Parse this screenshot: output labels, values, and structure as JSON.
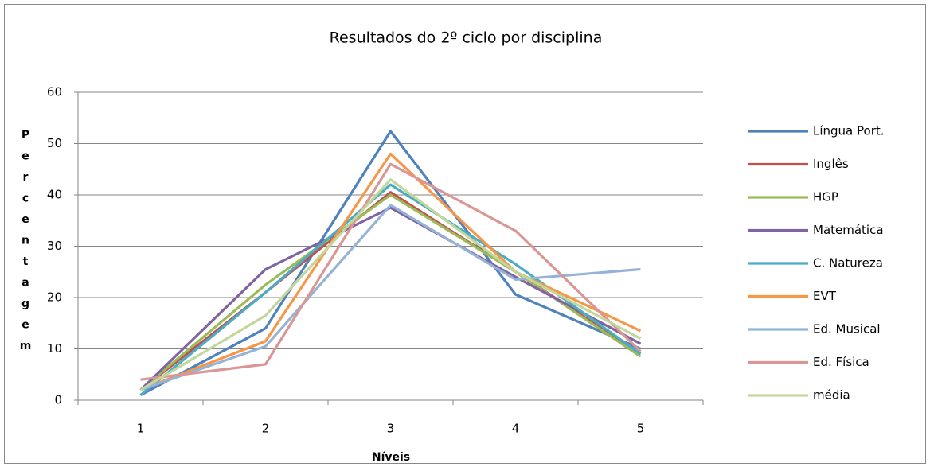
{
  "chart_data": {
    "type": "line",
    "title": "Resultados do 2º ciclo por disciplina",
    "x_label": "Níveis",
    "y_label": "Percentagem",
    "categories": [
      "1",
      "2",
      "3",
      "4",
      "5"
    ],
    "ylim": [
      0,
      60
    ],
    "yticks": [
      0,
      10,
      20,
      30,
      40,
      50,
      60
    ],
    "grid": true,
    "legend": "right",
    "series": [
      {
        "name": "Língua Port.",
        "color": "#4F81BD",
        "values": [
          1,
          14,
          52.4,
          20.6,
          10
        ]
      },
      {
        "name": "Inglês",
        "color": "#C0504D",
        "values": [
          2,
          21,
          40.5,
          25,
          9
        ]
      },
      {
        "name": "HGP",
        "color": "#9BBB59",
        "values": [
          2,
          22.5,
          40,
          25,
          8.5
        ]
      },
      {
        "name": "Matemática",
        "color": "#8064A2",
        "values": [
          2,
          25.5,
          37.5,
          24,
          11
        ]
      },
      {
        "name": "C. Natureza",
        "color": "#4BACC6",
        "values": [
          1,
          21,
          42,
          26.5,
          9
        ]
      },
      {
        "name": "EVT",
        "color": "#F79646",
        "values": [
          2,
          11.5,
          48,
          25,
          13.5
        ]
      },
      {
        "name": "Ed. Musical",
        "color": "#95B3D7",
        "values": [
          2,
          10.5,
          38,
          23.5,
          25.5
        ]
      },
      {
        "name": "Ed. Física",
        "color": "#D99694",
        "values": [
          4,
          7,
          46,
          33,
          9.5
        ]
      },
      {
        "name": "média",
        "color": "#C3D69B",
        "values": [
          2,
          16.5,
          43,
          25,
          12
        ]
      }
    ]
  }
}
